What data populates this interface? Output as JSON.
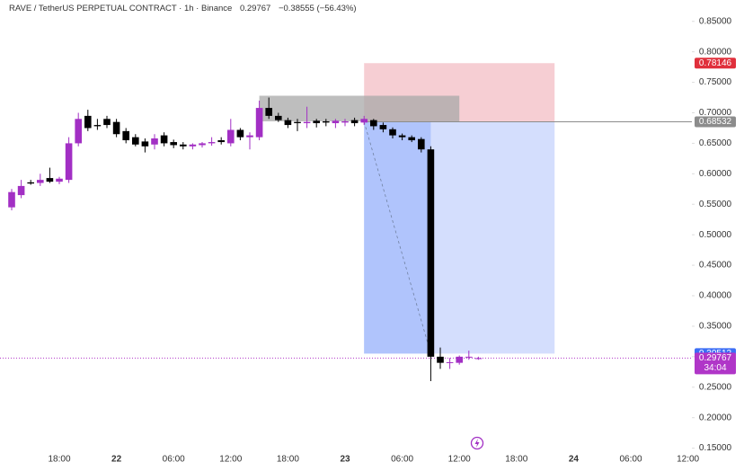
{
  "chart_data": {
    "type": "candlestick",
    "title": "RAVE / TetherUS PERPETUAL CONTRACT · 1h · Binance",
    "header_price": "0.29767",
    "header_change": "−0.38555 (−56.43%)",
    "categories": [
      null,
      null,
      null,
      null,
      null,
      "18:00",
      null,
      null,
      null,
      null,
      null,
      "22",
      null,
      null,
      null,
      null,
      null,
      "06:00",
      null,
      null,
      null,
      null,
      null,
      "12:00",
      null,
      null,
      null,
      null,
      null,
      "18:00",
      null,
      null,
      null,
      null,
      null,
      "23",
      null,
      null,
      null,
      null,
      null,
      "06:00",
      null,
      null,
      null,
      null,
      null,
      "12:00",
      null,
      null,
      null,
      null,
      null,
      "18:00",
      null,
      null,
      null,
      null,
      null,
      "24",
      null,
      null,
      null,
      null,
      null,
      "06:00",
      null,
      null,
      null,
      null,
      null,
      "12:00"
    ],
    "series": [
      {
        "name": "open",
        "values": [
          0.545,
          0.565,
          0.586,
          0.585,
          0.593,
          0.587,
          0.59,
          0.65,
          0.695,
          0.68,
          0.69,
          0.685,
          0.67,
          0.66,
          0.653,
          0.648,
          0.663,
          0.652,
          0.648,
          0.645,
          0.647,
          0.65,
          0.655,
          0.65,
          0.672,
          0.66,
          0.66,
          0.708,
          0.695,
          0.688,
          0.685,
          0.683,
          0.687,
          0.686,
          0.683,
          0.684,
          0.688,
          0.684,
          0.688,
          0.68,
          0.673,
          0.663,
          0.66,
          0.657,
          0.64,
          0.3,
          0.291,
          0.29,
          0.299,
          0.2975,
          null,
          null,
          null,
          null,
          null,
          null,
          null,
          null,
          null,
          null,
          null,
          null,
          null,
          null,
          null,
          null,
          null,
          null,
          null,
          null,
          null,
          null
        ]
      },
      {
        "name": "high",
        "values": [
          0.575,
          0.59,
          0.59,
          0.6,
          0.61,
          0.595,
          0.66,
          0.7,
          0.705,
          0.69,
          0.695,
          0.69,
          0.675,
          0.665,
          0.658,
          0.665,
          0.668,
          0.656,
          0.652,
          0.65,
          0.652,
          0.66,
          0.66,
          0.69,
          0.675,
          0.668,
          0.72,
          0.725,
          0.7,
          0.692,
          0.69,
          0.71,
          0.69,
          0.69,
          0.69,
          0.69,
          0.692,
          0.695,
          0.69,
          0.684,
          0.676,
          0.666,
          0.663,
          0.66,
          0.645,
          0.315,
          0.298,
          0.302,
          0.31,
          0.3,
          null,
          null,
          null,
          null,
          null,
          null,
          null,
          null,
          null,
          null,
          null,
          null,
          null,
          null,
          null,
          null,
          null,
          null,
          null,
          null,
          null,
          null
        ]
      },
      {
        "name": "low",
        "values": [
          0.54,
          0.56,
          0.582,
          0.58,
          0.585,
          0.583,
          0.585,
          0.645,
          0.67,
          0.672,
          0.675,
          0.66,
          0.65,
          0.645,
          0.635,
          0.64,
          0.645,
          0.642,
          0.64,
          0.64,
          0.643,
          0.646,
          0.648,
          0.645,
          0.655,
          0.64,
          0.655,
          0.69,
          0.685,
          0.675,
          0.67,
          0.675,
          0.676,
          0.678,
          0.675,
          0.678,
          0.678,
          0.68,
          0.672,
          0.668,
          0.658,
          0.655,
          0.652,
          0.635,
          0.26,
          0.28,
          0.28,
          0.287,
          0.295,
          0.295,
          null,
          null,
          null,
          null,
          null,
          null,
          null,
          null,
          null,
          null,
          null,
          null,
          null,
          null,
          null,
          null,
          null,
          null,
          null,
          null,
          null,
          null
        ]
      },
      {
        "name": "close",
        "values": [
          0.57,
          0.58,
          0.584,
          0.59,
          0.587,
          0.592,
          0.65,
          0.69,
          0.675,
          0.678,
          0.68,
          0.665,
          0.655,
          0.648,
          0.645,
          0.658,
          0.65,
          0.647,
          0.645,
          0.648,
          0.65,
          0.652,
          0.652,
          0.672,
          0.66,
          0.663,
          0.708,
          0.695,
          0.688,
          0.68,
          0.683,
          0.685,
          0.683,
          0.684,
          0.687,
          0.686,
          0.683,
          0.69,
          0.678,
          0.673,
          0.663,
          0.66,
          0.655,
          0.64,
          0.3,
          0.29,
          0.291,
          0.3,
          0.3,
          0.29767,
          null,
          null,
          null,
          null,
          null,
          null,
          null,
          null,
          null,
          null,
          null,
          null,
          null,
          null,
          null,
          null,
          null,
          null,
          null,
          null,
          null,
          null
        ]
      }
    ],
    "up_color": "#a22fc4",
    "down_color": "#000000",
    "ylim": [
      0.145,
      0.885
    ],
    "yticks": [
      {
        "value": 0.15,
        "label": "0.15000"
      },
      {
        "value": 0.2,
        "label": "0.20000"
      },
      {
        "value": 0.25,
        "label": "0.25000"
      },
      {
        "value": 0.3,
        "label": "0.30000"
      },
      {
        "value": 0.35,
        "label": "0.35000"
      },
      {
        "value": 0.4,
        "label": "0.40000"
      },
      {
        "value": 0.45,
        "label": "0.45000"
      },
      {
        "value": 0.5,
        "label": "0.50000"
      },
      {
        "value": 0.55,
        "label": "0.55000"
      },
      {
        "value": 0.6,
        "label": "0.60000"
      },
      {
        "value": 0.65,
        "label": "0.65000"
      },
      {
        "value": 0.7,
        "label": "0.70000"
      },
      {
        "value": 0.75,
        "label": "0.75000"
      },
      {
        "value": 0.8,
        "label": "0.80000"
      },
      {
        "value": 0.85,
        "label": "0.85000"
      }
    ],
    "rectangle": {
      "top": 0.728,
      "bottom": 0.686,
      "x_range": [
        26,
        47
      ],
      "color": "#a8a8a8"
    },
    "position": {
      "entry": 0.68532,
      "stop": 0.78146,
      "target": 0.30512,
      "x_range": [
        37,
        57
      ],
      "exit_index": 44,
      "entry_color": "#8c8c8c",
      "stop_color": "#f4c6cb",
      "target_color": "#cfdafd",
      "stop_label_color": "#e0303c",
      "target_label_color": "#3c6ef5"
    },
    "last_price": 0.29767,
    "countdown": "34:04",
    "last_price_color": "#b036c8"
  }
}
